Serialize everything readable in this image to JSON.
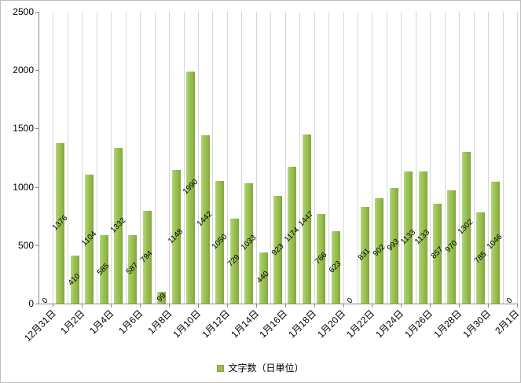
{
  "chart_data": {
    "type": "bar",
    "title": "",
    "categories": [
      "12月31日",
      "1月1日",
      "1月2日",
      "1月3日",
      "1月4日",
      "1月5日",
      "1月6日",
      "1月7日",
      "1月8日",
      "1月9日",
      "1月10日",
      "1月11日",
      "1月12日",
      "1月13日",
      "1月14日",
      "1月15日",
      "1月16日",
      "1月17日",
      "1月18日",
      "1月19日",
      "1月20日",
      "1月21日",
      "1月22日",
      "1月23日",
      "1月24日",
      "1月25日",
      "1月26日",
      "1月27日",
      "1月28日",
      "1月29日",
      "1月30日",
      "1月31日",
      "2月1日"
    ],
    "values": [
      0,
      1376,
      410,
      1104,
      585,
      1332,
      587,
      794,
      99,
      1148,
      1990,
      1442,
      1050,
      729,
      1033,
      440,
      923,
      1174,
      1447,
      766,
      623,
      0,
      831,
      902,
      993,
      1133,
      1133,
      857,
      970,
      1302,
      785,
      1046,
      0
    ],
    "series_name": "文字数（日単位）",
    "x_tick_labels": [
      "12月31日",
      "1月2日",
      "1月4日",
      "1月6日",
      "1月8日",
      "1月10日",
      "1月12日",
      "1月14日",
      "1月16日",
      "1月18日",
      "1月20日",
      "1月22日",
      "1月24日",
      "1月26日",
      "1月28日",
      "1月30日",
      "2月1日"
    ],
    "y_ticks": [
      0,
      500,
      1000,
      1500,
      2000,
      2500
    ],
    "ylim": [
      0,
      2500
    ],
    "xlabel": "",
    "ylabel": "",
    "grid": "vertical-only",
    "data_labels": "rotated-45-centered",
    "bar_color": "#9bbb59",
    "gridline_color": "#d6d6d6",
    "axis_color": "#8c8c8c",
    "legend": {
      "label": "文字数（日単位）",
      "position": "bottom"
    }
  }
}
